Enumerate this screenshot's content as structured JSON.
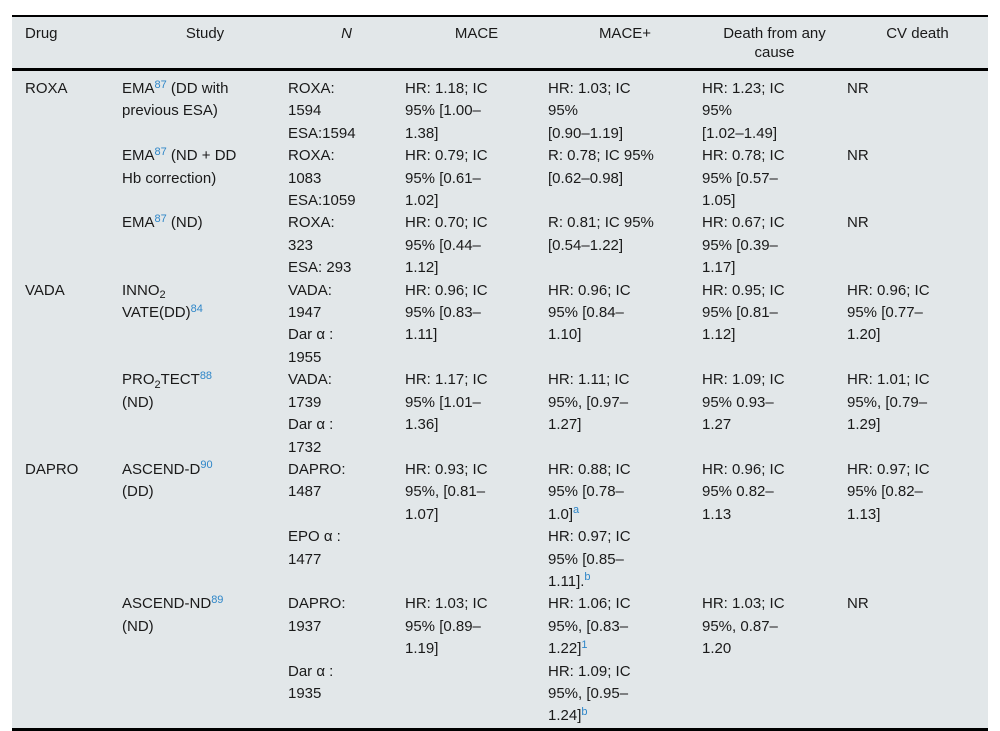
{
  "meta": {
    "background_color": "#e2e7e9",
    "text_color": "#1a1a1a",
    "reference_superscript_color": "#2e86c8"
  },
  "table": {
    "columns": [
      "Drug",
      "Study",
      "N",
      "MACE",
      "MACE+",
      "Death from any cause",
      "CV death"
    ],
    "rows": [
      {
        "drug": "ROXA",
        "study": [
          [
            {
              "t": "EMA"
            },
            {
              "t": "87",
              "s": "sup"
            },
            {
              "t": " (DD with"
            }
          ],
          [
            {
              "t": "previous ESA)"
            }
          ]
        ],
        "n": [
          "ROXA:",
          "1594",
          "ESA:1594"
        ],
        "mace": [
          "HR: 1.18; IC",
          "95% [1.00–",
          "1.38]"
        ],
        "mace_plus": [
          "HR: 1.03; IC",
          "95%",
          "[0.90–1.19]"
        ],
        "death": [
          "HR: 1.23; IC",
          "95%",
          "[1.02–1.49]"
        ],
        "cv": [
          "NR"
        ]
      },
      {
        "drug": "",
        "study": [
          [
            {
              "t": "EMA"
            },
            {
              "t": "87",
              "s": "sup"
            },
            {
              "t": " (ND + DD"
            }
          ],
          [
            {
              "t": "Hb correction)"
            }
          ]
        ],
        "n": [
          "ROXA:",
          "1083",
          "ESA:1059"
        ],
        "mace": [
          "HR: 0.79; IC",
          "95% [0.61–",
          "1.02]"
        ],
        "mace_plus": [
          "R: 0.78; IC 95%",
          "[0.62–0.98]"
        ],
        "death": [
          "HR: 0.78; IC",
          "95% [0.57–",
          "1.05]"
        ],
        "cv": [
          "NR"
        ]
      },
      {
        "drug": "",
        "study": [
          [
            {
              "t": "EMA"
            },
            {
              "t": "87",
              "s": "sup"
            },
            {
              "t": " (ND)"
            }
          ]
        ],
        "n": [
          "ROXA:",
          "323",
          "ESA: 293"
        ],
        "mace": [
          "HR: 0.70; IC",
          "95% [0.44–",
          "1.12]"
        ],
        "mace_plus": [
          "R: 0.81; IC 95%",
          "[0.54–1.22]"
        ],
        "death": [
          "HR: 0.67; IC",
          "95% [0.39–",
          "1.17]"
        ],
        "cv": [
          "NR"
        ]
      },
      {
        "drug": "VADA",
        "study": [
          [
            {
              "t": "INNO"
            },
            {
              "t": "2",
              "s": "sub"
            }
          ],
          [
            {
              "t": "VATE(DD)"
            },
            {
              "t": "84",
              "s": "sup"
            }
          ]
        ],
        "n": [
          "VADA:",
          "1947",
          "Dar α :",
          "1955"
        ],
        "mace": [
          "HR: 0.96; IC",
          "95% [0.83–",
          "1.11]"
        ],
        "mace_plus": [
          "HR: 0.96; IC",
          "95% [0.84–",
          "1.10]"
        ],
        "death": [
          "HR: 0.95; IC",
          "95% [0.81–",
          "1.12]"
        ],
        "cv": [
          "HR: 0.96; IC",
          "95% [0.77–",
          "1.20]"
        ]
      },
      {
        "drug": "",
        "study": [
          [
            {
              "t": "PRO"
            },
            {
              "t": "2",
              "s": "sub"
            },
            {
              "t": "TECT"
            },
            {
              "t": "88",
              "s": "sup"
            }
          ],
          [
            {
              "t": "(ND)"
            }
          ]
        ],
        "n": [
          "VADA:",
          "1739",
          "Dar α :",
          "1732"
        ],
        "mace": [
          "HR: 1.17; IC",
          "95% [1.01–",
          "1.36]"
        ],
        "mace_plus": [
          "HR: 1.11; IC",
          "95%, [0.97–",
          "1.27]"
        ],
        "death": [
          "HR: 1.09; IC",
          "95% 0.93–",
          "1.27"
        ],
        "cv": [
          "HR: 1.01; IC",
          "95%, [0.79–",
          "1.29]"
        ]
      },
      {
        "drug": "DAPRO",
        "study": [
          [
            {
              "t": "ASCEND-D"
            },
            {
              "t": "90",
              "s": "sup"
            }
          ],
          [
            {
              "t": "(DD)"
            }
          ]
        ],
        "n": [
          "DAPRO:",
          "1487",
          {
            "gap": true
          },
          "EPO α :",
          "1477"
        ],
        "mace": [
          "HR: 0.93; IC",
          "95%, [0.81–",
          "1.07]"
        ],
        "mace_plus": [
          "HR: 0.88; IC",
          "95% [0.78–",
          [
            {
              "t": "1.0]"
            },
            {
              "t": "a",
              "s": "sup"
            }
          ],
          "HR: 0.97; IC",
          "95% [0.85–",
          [
            {
              "t": "1.11]."
            },
            {
              "t": "b",
              "s": "sup"
            }
          ]
        ],
        "death": [
          "HR: 0.96; IC",
          "95% 0.82–",
          "1.13"
        ],
        "cv": [
          "HR: 0.97; IC",
          "95% [0.82–",
          "1.13]"
        ]
      },
      {
        "drug": "",
        "study": [
          [
            {
              "t": "ASCEND-ND"
            },
            {
              "t": "89",
              "s": "sup"
            }
          ],
          [
            {
              "t": "(ND)"
            }
          ]
        ],
        "n": [
          "DAPRO:",
          "1937",
          {
            "gap": true
          },
          "Dar α :",
          "1935"
        ],
        "mace": [
          "HR: 1.03; IC",
          "95% [0.89–",
          "1.19]"
        ],
        "mace_plus": [
          "HR: 1.06; IC",
          "95%, [0.83–",
          [
            {
              "t": "1.22]"
            },
            {
              "t": "1",
              "s": "sup"
            }
          ],
          "HR: 1.09; IC",
          "95%, [0.95–",
          [
            {
              "t": "1.24]"
            },
            {
              "t": "b",
              "s": "sup"
            }
          ]
        ],
        "death": [
          "HR: 1.03; IC",
          "95%, 0.87–",
          "1.20"
        ],
        "cv": [
          "NR"
        ]
      }
    ]
  }
}
